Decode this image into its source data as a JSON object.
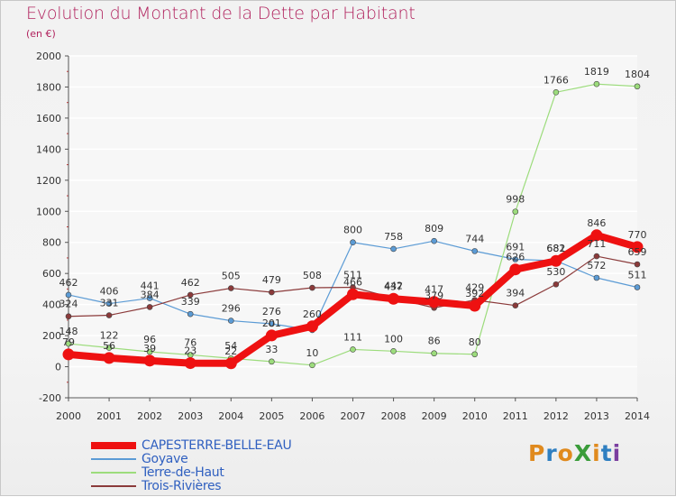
{
  "header": {
    "title": "Evolution du Montant de la Dette par Habitant",
    "unit": "(en €)"
  },
  "logo": {
    "text": "ProXiti",
    "colors": [
      "#e08a1e",
      "#2f7fc1",
      "#e08a1e",
      "#3a9c3a",
      "#e08a1e",
      "#2f7fc1",
      "#7b3fa0"
    ]
  },
  "chart_data": {
    "type": "line",
    "title": "Evolution du Montant de la Dette par Habitant",
    "ylabel": "(en €)",
    "xlabel": "",
    "x": [
      "2000",
      "2001",
      "2002",
      "2003",
      "2004",
      "2005",
      "2006",
      "2007",
      "2008",
      "2009",
      "2010",
      "2011",
      "2012",
      "2013",
      "2014"
    ],
    "ylim": [
      -200,
      2000
    ],
    "yticks": [
      "-200",
      "0",
      "200",
      "400",
      "600",
      "800",
      "1000",
      "1200",
      "1400",
      "1600",
      "1800",
      "2000"
    ],
    "grid": true,
    "legend_position": "bottom-left",
    "series": [
      {
        "name": "Goyave",
        "color": "#5b9bd5",
        "values": [
          462,
          406,
          441,
          339,
          296,
          276,
          236,
          800,
          758,
          809,
          744,
          691,
          682,
          572,
          511
        ],
        "labels": [
          "462",
          "406",
          "441",
          "339",
          "296",
          "276",
          "",
          "800",
          "758",
          "809",
          "744",
          "691",
          "682",
          "572",
          "511"
        ]
      },
      {
        "name": "Terre-de-Haut",
        "color": "#9cdc7c",
        "values": [
          148,
          122,
          96,
          76,
          54,
          33,
          10,
          111,
          100,
          86,
          80,
          998,
          1766,
          1819,
          1804
        ],
        "labels": [
          "148",
          "122",
          "96",
          "76",
          "54",
          "33",
          "10",
          "111",
          "100",
          "86",
          "80",
          "998",
          "1766",
          "1819",
          "1804"
        ]
      },
      {
        "name": "Trois-Rivières",
        "color": "#8b3a3a",
        "values": [
          324,
          331,
          384,
          462,
          505,
          479,
          508,
          511,
          442,
          379,
          429,
          394,
          530,
          711,
          659
        ],
        "labels": [
          "324",
          "331",
          "384",
          "462",
          "505",
          "479",
          "508",
          "511",
          "442",
          "379",
          "429",
          "394",
          "530",
          "711",
          "659"
        ]
      },
      {
        "name": "CAPESTERRE-BELLE-EAU",
        "color": "#ee1111",
        "values": [
          79,
          56,
          39,
          23,
          22,
          201,
          260,
          466,
          437,
          417,
          392,
          626,
          681,
          846,
          770
        ],
        "labels": [
          "79",
          "56",
          "39",
          "23",
          "22",
          "201",
          "260",
          "466",
          "437",
          "417",
          "392",
          "626",
          "681",
          "846",
          "770"
        ]
      }
    ],
    "legend": [
      "CAPESTERRE-BELLE-EAU",
      "Goyave",
      "Terre-de-Haut",
      "Trois-Rivières"
    ]
  }
}
